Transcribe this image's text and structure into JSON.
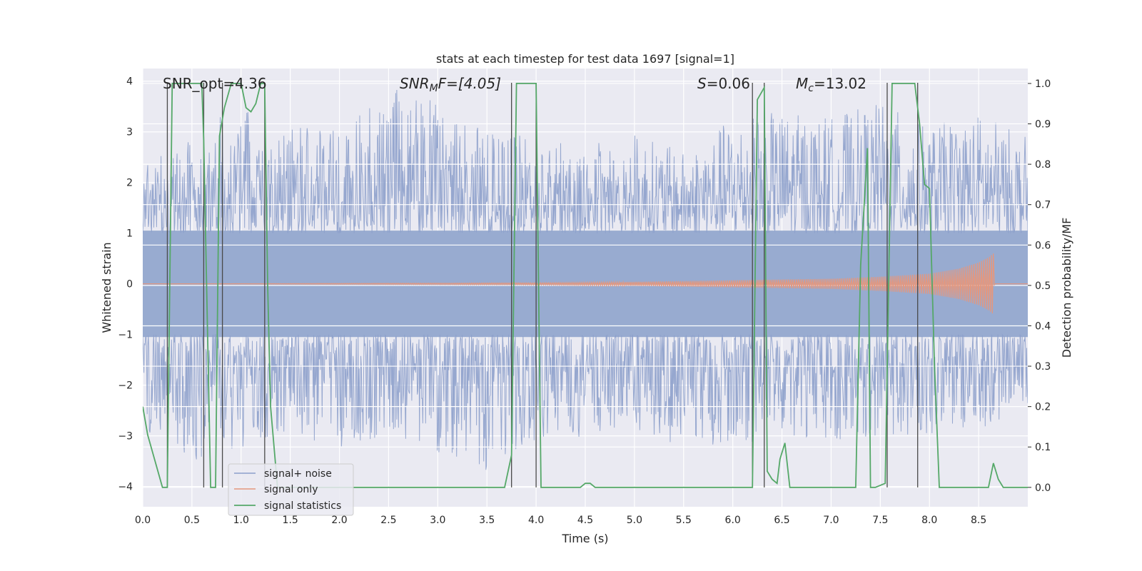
{
  "chart_data": {
    "type": "line",
    "title": "stats at each timestep for test data 1697 [signal=1]",
    "xlabel": "Time (s)",
    "ylabel": "Whitened strain",
    "ylabel_right": "Detection probability/MF",
    "xlim": [
      0,
      9.0
    ],
    "ylim": [
      -4.4,
      4.25
    ],
    "ylim_right": [
      -0.048,
      1.037
    ],
    "xticks": [
      "0.0",
      "0.5",
      "1.0",
      "1.5",
      "2.0",
      "2.5",
      "3.0",
      "3.5",
      "4.0",
      "4.5",
      "5.0",
      "5.5",
      "6.0",
      "6.5",
      "7.0",
      "7.5",
      "8.0",
      "8.5"
    ],
    "yticks": [
      "−4",
      "−3",
      "−2",
      "−1",
      "0",
      "1",
      "2",
      "3",
      "4"
    ],
    "yticks_right": [
      "0.0",
      "0.1",
      "0.2",
      "0.3",
      "0.4",
      "0.5",
      "0.6",
      "0.7",
      "0.8",
      "0.9",
      "1.0"
    ],
    "annotations": {
      "snr_opt": "SNR_opt=4.36",
      "snr_mf_main": "SNR",
      "snr_mf_sub": "M",
      "snr_mf_rest": "F=[4.05]",
      "s_main": "S",
      "s_rest": "=0.06",
      "mc_main": "M",
      "mc_sub": "c",
      "mc_rest": "=13.02"
    },
    "legend": [
      "signal+ noise",
      "signal only",
      "signal statistics"
    ],
    "series": [
      {
        "name": "signal+ noise",
        "color": "#8da0cb",
        "description": "whitened strain noise envelope",
        "x": [
          0.0,
          0.5,
          1.0,
          1.5,
          2.0,
          2.5,
          3.0,
          3.5,
          4.0,
          4.5,
          5.0,
          5.5,
          6.0,
          6.5,
          7.0,
          7.5,
          8.0,
          8.5,
          9.0
        ],
        "upper": [
          2.4,
          2.9,
          3.6,
          3.2,
          3.0,
          3.9,
          3.6,
          3.0,
          2.9,
          2.7,
          3.0,
          2.6,
          3.3,
          3.4,
          3.3,
          3.6,
          3.1,
          3.4,
          2.9
        ],
        "lower": [
          -2.9,
          -3.5,
          -3.3,
          -2.9,
          -3.3,
          -3.0,
          -3.4,
          -3.7,
          -3.3,
          -3.0,
          -3.0,
          -3.2,
          -3.2,
          -3.0,
          -3.1,
          -3.0,
          -3.0,
          -3.0,
          -2.4
        ]
      },
      {
        "name": "signal only",
        "color": "#e5977d",
        "x": [
          0.0,
          4.0,
          5.0,
          6.0,
          7.0,
          7.5,
          8.0,
          8.3,
          8.5,
          8.6,
          8.65,
          8.66,
          9.0
        ],
        "amplitude": [
          0.0,
          0.02,
          0.04,
          0.07,
          0.1,
          0.14,
          0.2,
          0.3,
          0.42,
          0.52,
          0.6,
          0.0,
          0.0
        ]
      },
      {
        "name": "signal statistics",
        "color": "#55a868",
        "x": [
          0.0,
          0.05,
          0.2,
          0.25,
          0.3,
          0.6,
          0.62,
          0.69,
          0.74,
          0.78,
          0.83,
          0.9,
          1.0,
          1.05,
          1.1,
          1.15,
          1.2,
          1.24,
          1.27,
          1.3,
          1.37,
          1.4,
          2.0,
          3.0,
          3.68,
          3.75,
          3.8,
          4.0,
          4.05,
          4.1,
          4.45,
          4.5,
          4.55,
          4.6,
          5.0,
          6.0,
          6.2,
          6.25,
          6.32,
          6.35,
          6.4,
          6.45,
          6.48,
          6.53,
          6.58,
          6.65,
          6.7,
          7.0,
          7.25,
          7.3,
          7.37,
          7.4,
          7.45,
          7.55,
          7.62,
          7.85,
          7.9,
          7.95,
          8.0,
          8.05,
          8.1,
          8.6,
          8.65,
          8.7,
          8.75,
          9.0
        ],
        "values": [
          0.2,
          0.13,
          0.0,
          0.0,
          1.0,
          1.0,
          0.86,
          0.0,
          0.0,
          0.87,
          0.94,
          1.0,
          1.0,
          0.94,
          0.93,
          0.95,
          1.0,
          1.0,
          0.5,
          0.2,
          0.0,
          0.0,
          0.0,
          0.0,
          0.0,
          0.08,
          1.0,
          1.0,
          0.0,
          0.0,
          0.0,
          0.01,
          0.01,
          0.0,
          0.0,
          0.0,
          0.0,
          0.96,
          0.99,
          0.04,
          0.02,
          0.01,
          0.07,
          0.11,
          0.0,
          0.0,
          0.0,
          0.0,
          0.0,
          0.55,
          0.84,
          0.0,
          0.0,
          0.01,
          1.0,
          1.0,
          0.9,
          0.75,
          0.74,
          0.31,
          0.0,
          0.0,
          0.06,
          0.02,
          0.0,
          0.0
        ]
      }
    ],
    "vertical_lines_x": [
      0.25,
      0.62,
      0.81,
      1.24,
      3.75,
      4.0,
      6.2,
      6.32,
      7.57,
      7.88
    ]
  }
}
